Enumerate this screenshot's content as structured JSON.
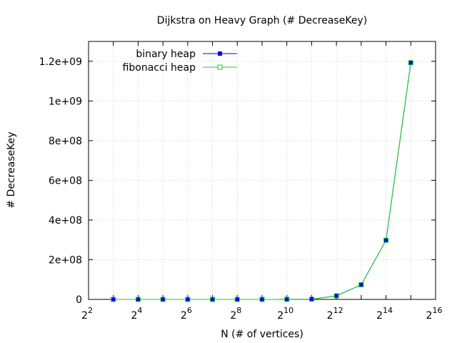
{
  "chart_data": {
    "type": "line",
    "title": "Dijkstra on Heavy Graph (# DecreaseKey)",
    "xlabel": "N (# of vertices)",
    "ylabel": "# DecreaseKey",
    "xscale": "log2",
    "xlim": [
      4,
      65536
    ],
    "ylim": [
      0,
      1300000000
    ],
    "x_ticks": [
      {
        "base": "2",
        "exp": "2"
      },
      {
        "base": "2",
        "exp": "4"
      },
      {
        "base": "2",
        "exp": "6"
      },
      {
        "base": "2",
        "exp": "8"
      },
      {
        "base": "2",
        "exp": "10"
      },
      {
        "base": "2",
        "exp": "12"
      },
      {
        "base": "2",
        "exp": "14"
      },
      {
        "base": "2",
        "exp": "16"
      }
    ],
    "y_ticks": [
      {
        "value": 0,
        "label": "0"
      },
      {
        "value": 200000000,
        "label": "2e+08"
      },
      {
        "value": 400000000,
        "label": "4e+08"
      },
      {
        "value": 600000000,
        "label": "6e+08"
      },
      {
        "value": 800000000,
        "label": "8e+08"
      },
      {
        "value": 1000000000,
        "label": "1e+09"
      },
      {
        "value": 1200000000,
        "label": "1.2e+09"
      }
    ],
    "grid": true,
    "legend_position": "top-left",
    "x": [
      8,
      16,
      32,
      64,
      128,
      256,
      512,
      1024,
      2048,
      4096,
      8192,
      16384,
      32768
    ],
    "series": [
      {
        "name": "binary heap",
        "color": "#0000ff",
        "marker": "filled-square",
        "values": [
          0,
          0,
          0,
          0,
          0,
          10000,
          50000,
          300000,
          1200000,
          18000000,
          74000000,
          298000000,
          1193000000
        ]
      },
      {
        "name": "fibonacci heap",
        "color": "#22cc22",
        "marker": "open-square",
        "values": [
          0,
          0,
          0,
          0,
          0,
          10000,
          50000,
          300000,
          1200000,
          18000000,
          74000000,
          298000000,
          1193000000
        ]
      }
    ]
  }
}
